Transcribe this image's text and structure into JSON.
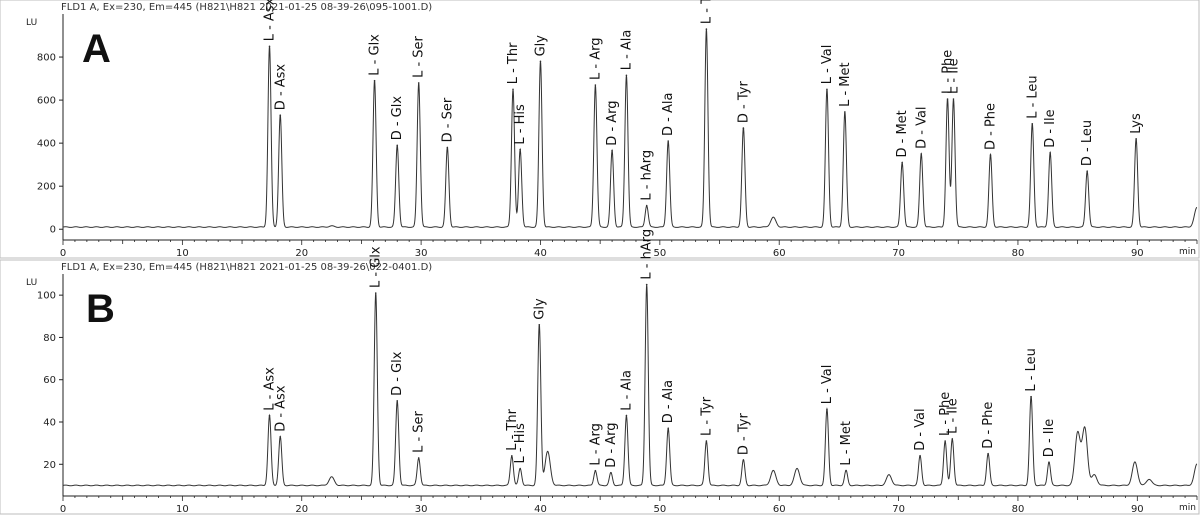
{
  "chart_data": [
    {
      "type": "line",
      "panel_letter": "A",
      "header": "FLD1 A, Ex=230, Em=445 (H821\\H821 2021-01-25 08-39-26\\095-1001.D)",
      "ylabel": "LU",
      "xlabel": "min",
      "xlim": [
        0,
        95
      ],
      "ylim": [
        -50,
        1000
      ],
      "xticks": [
        0,
        10,
        20,
        30,
        40,
        50,
        60,
        70,
        80,
        90
      ],
      "yticks": [
        0,
        200,
        400,
        600,
        800
      ],
      "grid": false,
      "baseline": 10,
      "peaks": [
        {
          "label": "L - Asx",
          "x": 17.3,
          "y": 850
        },
        {
          "label": "D - Asx",
          "x": 18.2,
          "y": 530
        },
        {
          "label": "L - Glx",
          "x": 26.1,
          "y": 690
        },
        {
          "label": "D - Glx",
          "x": 28.0,
          "y": 390
        },
        {
          "label": "L - Ser",
          "x": 29.8,
          "y": 680
        },
        {
          "label": "D - Ser",
          "x": 32.2,
          "y": 380
        },
        {
          "label": "L - Thr",
          "x": 37.7,
          "y": 650
        },
        {
          "label": "L - His",
          "x": 38.3,
          "y": 370
        },
        {
          "label": "Gly",
          "x": 40.0,
          "y": 780
        },
        {
          "label": "L - Arg",
          "x": 44.6,
          "y": 670
        },
        {
          "label": "D - Arg",
          "x": 46.0,
          "y": 365
        },
        {
          "label": "L - Ala",
          "x": 47.2,
          "y": 715
        },
        {
          "label": "L - hArg",
          "x": 48.9,
          "y": 110
        },
        {
          "label": "D - Ala",
          "x": 50.7,
          "y": 410
        },
        {
          "label": "L - Tyr",
          "x": 53.9,
          "y": 930
        },
        {
          "label": "D - Tyr",
          "x": 57.0,
          "y": 470
        },
        {
          "label": "L - Val",
          "x": 64.0,
          "y": 650
        },
        {
          "label": "L - Met",
          "x": 65.5,
          "y": 545
        },
        {
          "label": "D - Met",
          "x": 70.3,
          "y": 310
        },
        {
          "label": "D - Val",
          "x": 71.9,
          "y": 350
        },
        {
          "label": "L - Phe",
          "x": 74.1,
          "y": 605
        },
        {
          "label": "L - Ile",
          "x": 74.6,
          "y": 605
        },
        {
          "label": "D - Phe",
          "x": 77.7,
          "y": 345
        },
        {
          "label": "L - Leu",
          "x": 81.2,
          "y": 490
        },
        {
          "label": "D - Ile",
          "x": 82.7,
          "y": 355
        },
        {
          "label": "D - Leu",
          "x": 85.8,
          "y": 270
        },
        {
          "label": "Lys",
          "x": 89.9,
          "y": 420
        }
      ],
      "minor_peaks": [
        {
          "x": 59.5,
          "y": 55
        },
        {
          "x": 22.5,
          "y": 15
        },
        {
          "x": 95.0,
          "y": 100
        }
      ]
    },
    {
      "type": "line",
      "panel_letter": "B",
      "header": "FLD1 A, Ex=230, Em=445 (H821\\H821 2021-01-25 08-39-26\\022-0401.D)",
      "ylabel": "LU",
      "xlabel": "min",
      "xlim": [
        0,
        95
      ],
      "ylim": [
        5,
        110
      ],
      "xticks": [
        0,
        10,
        20,
        30,
        40,
        50,
        60,
        70,
        80,
        90
      ],
      "yticks": [
        20,
        40,
        60,
        80,
        100
      ],
      "grid": false,
      "baseline": 10,
      "peaks": [
        {
          "label": "L - Asx",
          "x": 17.3,
          "y": 43
        },
        {
          "label": "D - Asx",
          "x": 18.2,
          "y": 33
        },
        {
          "label": "L - Glx",
          "x": 26.2,
          "y": 101
        },
        {
          "label": "D - Glx",
          "x": 28.0,
          "y": 50
        },
        {
          "label": "L - Ser",
          "x": 29.8,
          "y": 23
        },
        {
          "label": "L - Thr",
          "x": 37.6,
          "y": 24
        },
        {
          "label": "L - His",
          "x": 38.3,
          "y": 18
        },
        {
          "label": "Gly",
          "x": 39.9,
          "y": 86
        },
        {
          "label": "L - Arg",
          "x": 44.6,
          "y": 17
        },
        {
          "label": "D - Arg",
          "x": 45.9,
          "y": 16
        },
        {
          "label": "L - Ala",
          "x": 47.2,
          "y": 43
        },
        {
          "label": "L - hArg",
          "x": 48.9,
          "y": 105
        },
        {
          "label": "D - Ala",
          "x": 50.7,
          "y": 37
        },
        {
          "label": "L - Tyr",
          "x": 53.9,
          "y": 31
        },
        {
          "label": "D - Tyr",
          "x": 57.0,
          "y": 22
        },
        {
          "label": "L - Val",
          "x": 64.0,
          "y": 46
        },
        {
          "label": "L - Met",
          "x": 65.6,
          "y": 17
        },
        {
          "label": "D - Val",
          "x": 71.8,
          "y": 24
        },
        {
          "label": "L - Phe",
          "x": 73.9,
          "y": 31
        },
        {
          "label": "L - Ile",
          "x": 74.5,
          "y": 32
        },
        {
          "label": "D - Phe",
          "x": 77.5,
          "y": 25
        },
        {
          "label": "L - Leu",
          "x": 81.1,
          "y": 52
        },
        {
          "label": "D - Ile",
          "x": 82.6,
          "y": 21
        }
      ],
      "minor_peaks": [
        {
          "x": 22.5,
          "y": 14
        },
        {
          "x": 40.6,
          "y": 26
        },
        {
          "x": 59.5,
          "y": 17
        },
        {
          "x": 61.5,
          "y": 18
        },
        {
          "x": 69.2,
          "y": 15
        },
        {
          "x": 85.0,
          "y": 35
        },
        {
          "x": 85.6,
          "y": 37
        },
        {
          "x": 86.4,
          "y": 15
        },
        {
          "x": 89.8,
          "y": 21
        },
        {
          "x": 91.0,
          "y": 13
        },
        {
          "x": 95.0,
          "y": 20
        }
      ]
    }
  ]
}
